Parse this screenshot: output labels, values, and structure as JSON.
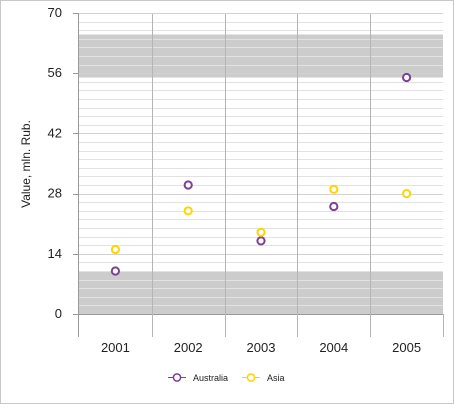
{
  "chart_data": {
    "type": "scatter",
    "ylabel": "Value, mln. Rub.",
    "categories": [
      "2001",
      "2002",
      "2003",
      "2004",
      "2005"
    ],
    "ylim": [
      0,
      70
    ],
    "yticks": [
      0,
      14,
      28,
      42,
      56,
      70
    ],
    "grid": true,
    "bands": [
      {
        "from": 0,
        "to": 10,
        "color": "#cccccc"
      },
      {
        "from": 55,
        "to": 65,
        "color": "#cccccc"
      }
    ],
    "legend_position": "bottom",
    "series": [
      {
        "name": "Australia",
        "color": "#7b3f98",
        "values": [
          10,
          30,
          17,
          25,
          55
        ]
      },
      {
        "name": "Asia",
        "color": "#ffd400",
        "values": [
          15,
          24,
          19,
          29,
          28
        ]
      }
    ]
  }
}
